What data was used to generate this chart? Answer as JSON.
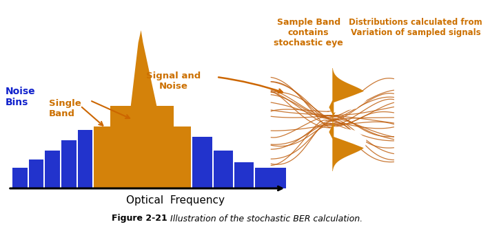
{
  "bg_color": "#ffffff",
  "orange": "#CC7000",
  "orange_fill": "#D4820A",
  "orange_line": "#CC6600",
  "blue": "#2233CC",
  "text_orange": "#CC7000",
  "text_blue": "#1122CC",
  "text_black": "#000000",
  "caption_bold": "Figure 2-21 ",
  "caption_italic": "Illustration of the stochastic BER calculation.",
  "xlabel": "Optical  Frequency",
  "label_noise_bins": "Noise\nBins",
  "label_single_band": "Single\nBand",
  "label_signal_noise": "Signal and\nNoise",
  "label_sample_band": "Sample Band\ncontains\nstochastic eye",
  "label_distributions": "Distributions calculated from\nVariation of sampled signals"
}
